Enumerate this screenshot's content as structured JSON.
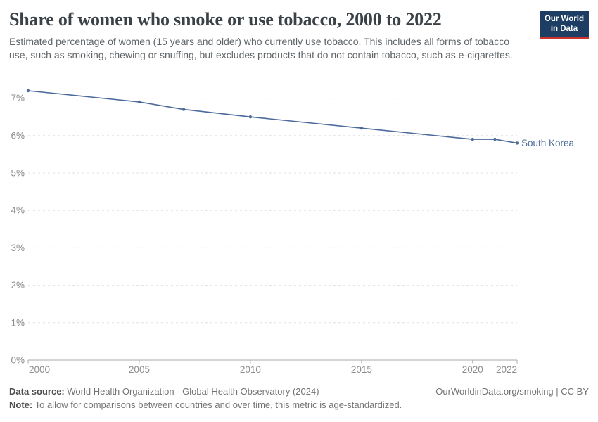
{
  "header": {
    "title": "Share of women who smoke or use tobacco, 2000 to 2022",
    "subtitle": "Estimated percentage of women (15 years and older) who currently use tobacco. This includes all forms of tobacco use, such as smoking, chewing or snuffing, but excludes products that do not contain tobacco, such as e-cigarettes.",
    "logo_line1": "Our World",
    "logo_line2": "in Data",
    "logo_bg_color": "#1d3d63",
    "logo_stripe_color": "#cc342d"
  },
  "chart_data": {
    "type": "line",
    "title": "Share of women who smoke or use tobacco, 2000 to 2022",
    "xlabel": "",
    "ylabel": "",
    "xlim": [
      2000,
      2022
    ],
    "ylim": [
      0,
      7.5
    ],
    "grid": "horizontal-dashed",
    "legend_position": "label-at-line-end",
    "x_ticks": {
      "values": [
        2000,
        2005,
        2010,
        2015,
        2020,
        2022
      ],
      "labels": [
        "2000",
        "2005",
        "2010",
        "2015",
        "2020",
        "2022"
      ]
    },
    "y_ticks": {
      "values": [
        0,
        1,
        2,
        3,
        4,
        5,
        6,
        7
      ],
      "labels": [
        "0%",
        "1%",
        "2%",
        "3%",
        "4%",
        "5%",
        "6%",
        "7%"
      ]
    },
    "series": [
      {
        "name": "South Korea",
        "color": "#4c6a9c",
        "x": [
          2000,
          2005,
          2007,
          2010,
          2015,
          2020,
          2021,
          2022
        ],
        "values": [
          7.2,
          6.9,
          6.7,
          6.5,
          6.2,
          5.9,
          5.9,
          5.8
        ]
      }
    ]
  },
  "footer": {
    "datasource_label": "Data source:",
    "datasource_text": "World Health Organization - Global Health Observatory (2024)",
    "link_text": "OurWorldinData.org/smoking | CC BY",
    "note_label": "Note:",
    "note_text": "To allow for comparisons between countries and over time, this metric is age-standardized."
  }
}
